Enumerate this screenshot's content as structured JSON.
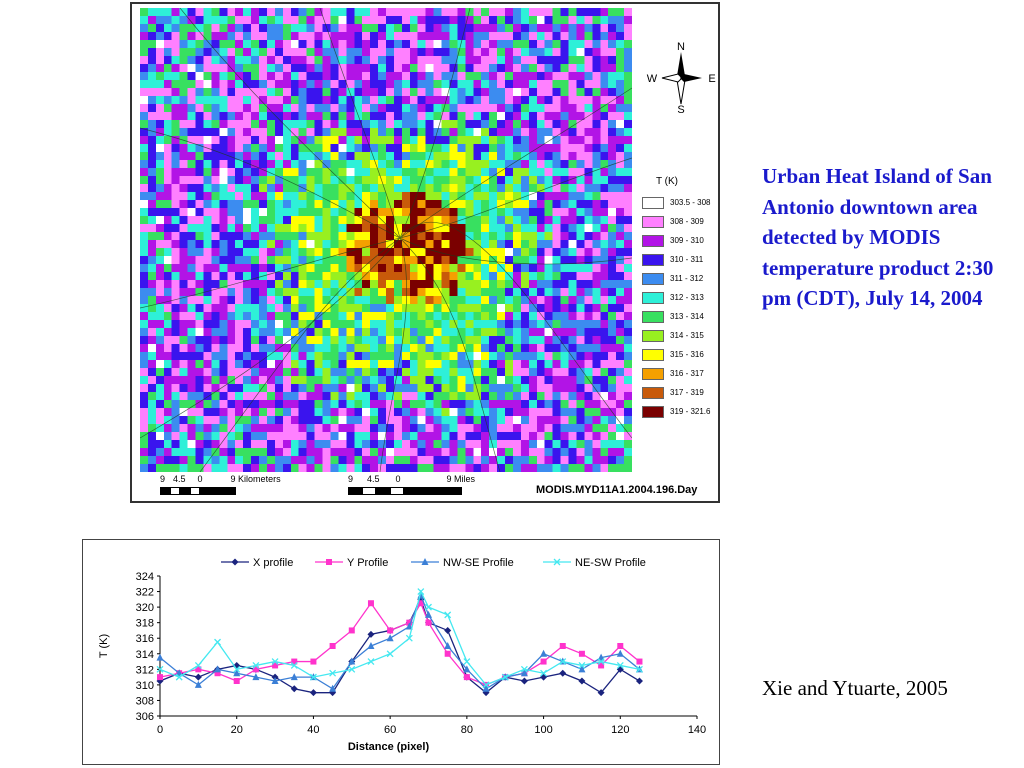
{
  "caption": "Urban Heat Island of San Antonio downtown area detected by MODIS temperature product 2:30 pm (CDT), July 14, 2004",
  "credit": "Xie and Ytuarte, 2005",
  "map": {
    "compass": {
      "n": "N",
      "s": "S",
      "e": "E",
      "w": "W"
    },
    "legend_title": "T (K)",
    "legend": [
      {
        "label": "303.5 - 308",
        "color": "#ffffff"
      },
      {
        "label": "308 - 309",
        "color": "#ff80ff"
      },
      {
        "label": "309 - 310",
        "color": "#b214e6"
      },
      {
        "label": "310 - 311",
        "color": "#3a14ee"
      },
      {
        "label": "311 - 312",
        "color": "#3c8cf0"
      },
      {
        "label": "312 - 313",
        "color": "#2ef0d8"
      },
      {
        "label": "313 - 314",
        "color": "#38e060"
      },
      {
        "label": "314 - 315",
        "color": "#98f020"
      },
      {
        "label": "315 - 316",
        "color": "#ffff00"
      },
      {
        "label": "316 - 317",
        "color": "#f5a000"
      },
      {
        "label": "317 - 319",
        "color": "#c85a0a"
      },
      {
        "label": "319 - 321.6",
        "color": "#7a0000"
      }
    ],
    "scale_km": {
      "ticks": [
        "9",
        "4.5",
        "0",
        "9 Kilometers"
      ]
    },
    "scale_mi": {
      "ticks": [
        "9",
        "4.5",
        "0",
        "9 Miles"
      ]
    },
    "product_id": "MODIS.MYD11A1.2004.196.Day"
  },
  "chart_data": {
    "type": "line",
    "title": "",
    "xlabel": "Distance (pixel)",
    "ylabel": "T (K)",
    "xlim": [
      0,
      140
    ],
    "ylim": [
      306,
      324
    ],
    "xticks": [
      0,
      20,
      40,
      60,
      80,
      100,
      120,
      140
    ],
    "yticks": [
      306,
      308,
      310,
      312,
      314,
      316,
      318,
      320,
      322,
      324
    ],
    "legend_position": "top",
    "series": [
      {
        "name": "X profile",
        "color": "#1a237e",
        "marker": "diamond",
        "x": [
          0,
          5,
          10,
          15,
          20,
          25,
          30,
          35,
          40,
          45,
          50,
          55,
          60,
          65,
          68,
          70,
          75,
          80,
          85,
          90,
          95,
          100,
          105,
          110,
          115,
          120,
          125
        ],
        "y": [
          310.5,
          311.5,
          311,
          312,
          312.5,
          312,
          311,
          309.5,
          309,
          309,
          313,
          316.5,
          317,
          318,
          321,
          318,
          317,
          311,
          309,
          311,
          310.5,
          311,
          311.5,
          310.5,
          309,
          312,
          310.5
        ]
      },
      {
        "name": "Y Profile",
        "color": "#ff33cc",
        "marker": "square",
        "x": [
          0,
          5,
          10,
          15,
          20,
          25,
          30,
          35,
          40,
          45,
          50,
          55,
          60,
          65,
          68,
          70,
          75,
          80,
          85,
          90,
          95,
          100,
          105,
          110,
          115,
          120,
          125
        ],
        "y": [
          311,
          311.5,
          312,
          311.5,
          310.5,
          312,
          312.5,
          313,
          313,
          315,
          317,
          320.5,
          317,
          318,
          320.5,
          318,
          314,
          311,
          310,
          311,
          311.5,
          313,
          315,
          314,
          312.5,
          315,
          313
        ]
      },
      {
        "name": "NW-SE Profile",
        "color": "#3b7fd6",
        "marker": "triangle",
        "x": [
          0,
          5,
          10,
          15,
          20,
          25,
          30,
          35,
          40,
          45,
          50,
          55,
          60,
          65,
          68,
          70,
          75,
          80,
          85,
          90,
          95,
          100,
          105,
          110,
          115,
          120,
          125
        ],
        "y": [
          313.5,
          311.5,
          310,
          312,
          311.5,
          311,
          310.5,
          311,
          311,
          309.5,
          313,
          315,
          316,
          317.5,
          321.5,
          319,
          315,
          312,
          309.5,
          311,
          311.5,
          314,
          313,
          312,
          313.5,
          314,
          312
        ]
      },
      {
        "name": "NE-SW Profile",
        "color": "#44e8f0",
        "marker": "cross",
        "x": [
          0,
          5,
          10,
          15,
          20,
          25,
          30,
          35,
          40,
          45,
          50,
          55,
          60,
          65,
          68,
          70,
          75,
          80,
          85,
          90,
          95,
          100,
          105,
          110,
          115,
          120,
          125
        ],
        "y": [
          312,
          311,
          312.5,
          315.5,
          312,
          312.5,
          313,
          312.5,
          311,
          311.5,
          312,
          313,
          314,
          316,
          322,
          320,
          319,
          313,
          310,
          311,
          312,
          311.5,
          313,
          312.5,
          313,
          312.5,
          312
        ]
      }
    ]
  }
}
